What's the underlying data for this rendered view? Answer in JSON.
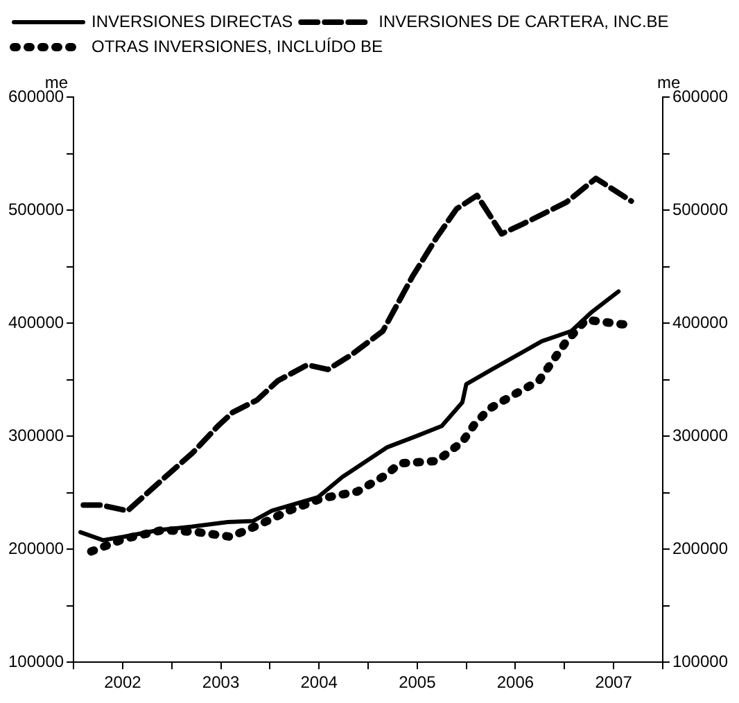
{
  "chart_data": {
    "type": "line",
    "ylabel": "me",
    "y2label": "me",
    "xlim": [
      2002,
      2008
    ],
    "xticks": [
      {
        "value": 2002,
        "label": null
      },
      {
        "value": 2002.5,
        "label": "2002"
      },
      {
        "value": 2003,
        "label": null
      },
      {
        "value": 2003.5,
        "label": "2003"
      },
      {
        "value": 2004,
        "label": null
      },
      {
        "value": 2004.5,
        "label": "2004"
      },
      {
        "value": 2005,
        "label": null
      },
      {
        "value": 2005.5,
        "label": "2005"
      },
      {
        "value": 2006,
        "label": null
      },
      {
        "value": 2006.5,
        "label": "2006"
      },
      {
        "value": 2007,
        "label": null
      },
      {
        "value": 2007.5,
        "label": "2007"
      },
      {
        "value": 2008,
        "label": null
      }
    ],
    "ylim": [
      100000,
      600000
    ],
    "yticks": [
      100000,
      {
        "value": 150000,
        "label": null
      },
      200000,
      {
        "value": 250000,
        "label": null
      },
      300000,
      {
        "value": 350000,
        "label": null
      },
      400000,
      {
        "value": 450000,
        "label": null
      },
      500000,
      {
        "value": 550000,
        "label": null
      },
      600000
    ],
    "y2lim": [
      100000,
      600000
    ],
    "y2ticks": [
      100000,
      {
        "value": 150000,
        "label": null
      },
      200000,
      {
        "value": 250000,
        "label": null
      },
      300000,
      {
        "value": 350000,
        "label": null
      },
      400000,
      {
        "value": 450000,
        "label": null
      },
      500000,
      {
        "value": 550000,
        "label": null
      },
      600000
    ],
    "legend": "top",
    "grid": false,
    "marker": "none",
    "series": [
      {
        "name": "INVERSIONES DIRECTAS",
        "color": "#000000",
        "line_style": "solid",
        "x": [
          2002.07,
          2002.3,
          2002.51,
          2002.87,
          2003.21,
          2003.57,
          2003.83,
          2004.02,
          2004.49,
          2004.74,
          2005.19,
          2005.49,
          2005.75,
          2005.96,
          2006.0,
          2006.26,
          2006.77,
          2007.07,
          2007.28,
          2007.55
        ],
        "values": [
          215000,
          208000,
          211000,
          217000,
          220000,
          224000,
          225000,
          234000,
          246000,
          264000,
          290000,
          300000,
          309000,
          330000,
          346000,
          359000,
          384000,
          393000,
          410000,
          428000
        ]
      },
      {
        "name": "INVERSIONES DE CARTERA, INC.BE",
        "color": "#000000",
        "line_style": "dashed",
        "x": [
          2002.1,
          2002.28,
          2002.55,
          2002.91,
          2003.21,
          2003.47,
          2003.62,
          2003.87,
          2004.08,
          2004.38,
          2004.59,
          2004.83,
          2005.15,
          2005.45,
          2005.7,
          2005.9,
          2006.11,
          2006.36,
          2006.56,
          2007.02,
          2007.32,
          2007.68
        ],
        "values": [
          239000,
          239000,
          234000,
          262000,
          285000,
          309000,
          321000,
          332000,
          349000,
          363000,
          359000,
          372000,
          393000,
          441000,
          476000,
          501000,
          513000,
          479000,
          487000,
          507000,
          528000,
          508000
        ]
      },
      {
        "name": "OTRAS INVERSIONES, INCLUÍDO BE",
        "color": "#000000",
        "line_style": "dotted",
        "x": [
          2002.18,
          2002.51,
          2002.91,
          2003.27,
          2003.6,
          2003.9,
          2004.19,
          2004.53,
          2004.89,
          2005.15,
          2005.33,
          2005.7,
          2005.96,
          2006.08,
          2006.23,
          2006.51,
          2006.74,
          2007.02,
          2007.22,
          2007.58,
          2007.7
        ],
        "values": [
          198000,
          209000,
          217000,
          215000,
          211000,
          222000,
          234000,
          245000,
          251000,
          264000,
          276000,
          278000,
          295000,
          310000,
          324000,
          338000,
          349000,
          384000,
          403000,
          399000,
          399000
        ]
      }
    ]
  }
}
